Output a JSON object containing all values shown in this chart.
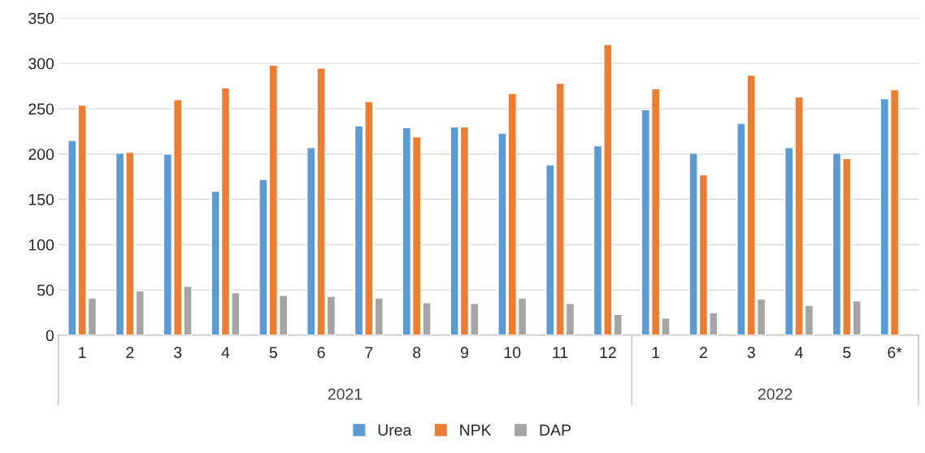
{
  "chart_data": {
    "type": "bar",
    "categories": [
      "1",
      "2",
      "3",
      "4",
      "5",
      "6",
      "7",
      "8",
      "9",
      "10",
      "11",
      "12",
      "1",
      "2",
      "3",
      "4",
      "5",
      "6*"
    ],
    "series": [
      {
        "name": "Urea",
        "color": "#5b9bd5",
        "values": [
          215,
          201,
          200,
          159,
          172,
          207,
          231,
          229,
          230,
          223,
          188,
          209,
          249,
          201,
          234,
          207,
          201,
          261
        ]
      },
      {
        "name": "NPK",
        "color": "#ed7d31",
        "values": [
          254,
          202,
          260,
          273,
          298,
          295,
          258,
          219,
          230,
          267,
          278,
          321,
          272,
          177,
          287,
          263,
          195,
          271
        ]
      },
      {
        "name": "DAP",
        "color": "#a5a5a5",
        "values": [
          41,
          49,
          54,
          47,
          44,
          43,
          41,
          36,
          35,
          41,
          35,
          23,
          19,
          25,
          40,
          33,
          38,
          null
        ]
      }
    ],
    "annotations": [
      "2021",
      "2022"
    ],
    "ylim": [
      0,
      350
    ],
    "yticks": [
      0,
      50,
      100,
      150,
      200,
      250,
      300,
      350
    ],
    "grid": "y",
    "legend": "bottom"
  }
}
